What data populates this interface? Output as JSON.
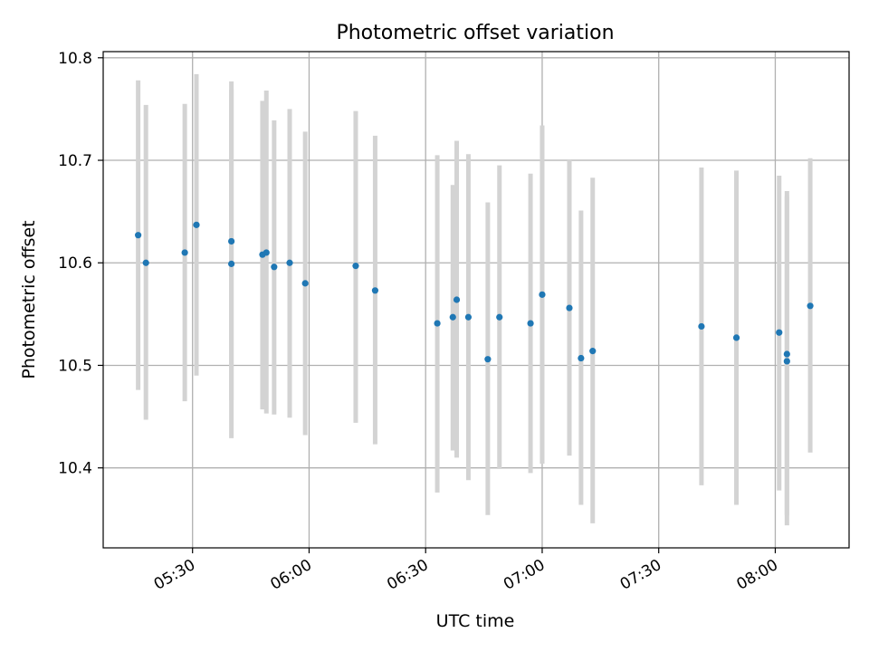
{
  "chart_data": {
    "type": "scatter",
    "title": "Photometric offset variation",
    "xlabel": "UTC time",
    "ylabel": "Photometric offset",
    "xlim": [
      "05:07",
      "08:19"
    ],
    "ylim": [
      10.322,
      10.806
    ],
    "xticks": [
      "05:30",
      "06:00",
      "06:30",
      "07:00",
      "07:30",
      "08:00"
    ],
    "yticks": [
      "10.4",
      "10.5",
      "10.6",
      "10.7",
      "10.8"
    ],
    "grid": true,
    "marker_color": "#1f77b4",
    "errorbar_color": "#d3d3d3",
    "points": [
      {
        "t": "05:16",
        "y": 10.627,
        "lo": 10.476,
        "hi": 10.778
      },
      {
        "t": "05:18",
        "y": 10.6,
        "lo": 10.447,
        "hi": 10.754
      },
      {
        "t": "05:28",
        "y": 10.61,
        "lo": 10.465,
        "hi": 10.755
      },
      {
        "t": "05:31",
        "y": 10.637,
        "lo": 10.49,
        "hi": 10.784
      },
      {
        "t": "05:40",
        "y": 10.599,
        "lo": 10.429,
        "hi": 10.769
      },
      {
        "t": "05:40",
        "y": 10.621,
        "lo": 10.466,
        "hi": 10.777
      },
      {
        "t": "05:48",
        "y": 10.608,
        "lo": 10.457,
        "hi": 10.758
      },
      {
        "t": "05:49",
        "y": 10.61,
        "lo": 10.453,
        "hi": 10.768
      },
      {
        "t": "05:51",
        "y": 10.596,
        "lo": 10.452,
        "hi": 10.739
      },
      {
        "t": "05:55",
        "y": 10.6,
        "lo": 10.449,
        "hi": 10.75
      },
      {
        "t": "05:59",
        "y": 10.58,
        "lo": 10.432,
        "hi": 10.728
      },
      {
        "t": "06:12",
        "y": 10.597,
        "lo": 10.444,
        "hi": 10.748
      },
      {
        "t": "06:17",
        "y": 10.573,
        "lo": 10.423,
        "hi": 10.724
      },
      {
        "t": "06:33",
        "y": 10.541,
        "lo": 10.376,
        "hi": 10.705
      },
      {
        "t": "06:37",
        "y": 10.547,
        "lo": 10.417,
        "hi": 10.676
      },
      {
        "t": "06:38",
        "y": 10.564,
        "lo": 10.41,
        "hi": 10.719
      },
      {
        "t": "06:41",
        "y": 10.547,
        "lo": 10.388,
        "hi": 10.706
      },
      {
        "t": "06:46",
        "y": 10.506,
        "lo": 10.354,
        "hi": 10.659
      },
      {
        "t": "06:49",
        "y": 10.547,
        "lo": 10.399,
        "hi": 10.695
      },
      {
        "t": "06:57",
        "y": 10.541,
        "lo": 10.395,
        "hi": 10.687
      },
      {
        "t": "07:00",
        "y": 10.569,
        "lo": 10.404,
        "hi": 10.734
      },
      {
        "t": "07:07",
        "y": 10.556,
        "lo": 10.412,
        "hi": 10.701
      },
      {
        "t": "07:10",
        "y": 10.507,
        "lo": 10.364,
        "hi": 10.651
      },
      {
        "t": "07:13",
        "y": 10.514,
        "lo": 10.346,
        "hi": 10.683
      },
      {
        "t": "07:41",
        "y": 10.538,
        "lo": 10.383,
        "hi": 10.693
      },
      {
        "t": "07:50",
        "y": 10.527,
        "lo": 10.364,
        "hi": 10.69
      },
      {
        "t": "08:01",
        "y": 10.532,
        "lo": 10.378,
        "hi": 10.685
      },
      {
        "t": "08:03",
        "y": 10.511,
        "lo": 10.354,
        "hi": 10.67
      },
      {
        "t": "08:03",
        "y": 10.504,
        "lo": 10.344,
        "hi": 10.665
      },
      {
        "t": "08:09",
        "y": 10.558,
        "lo": 10.415,
        "hi": 10.702
      }
    ]
  }
}
